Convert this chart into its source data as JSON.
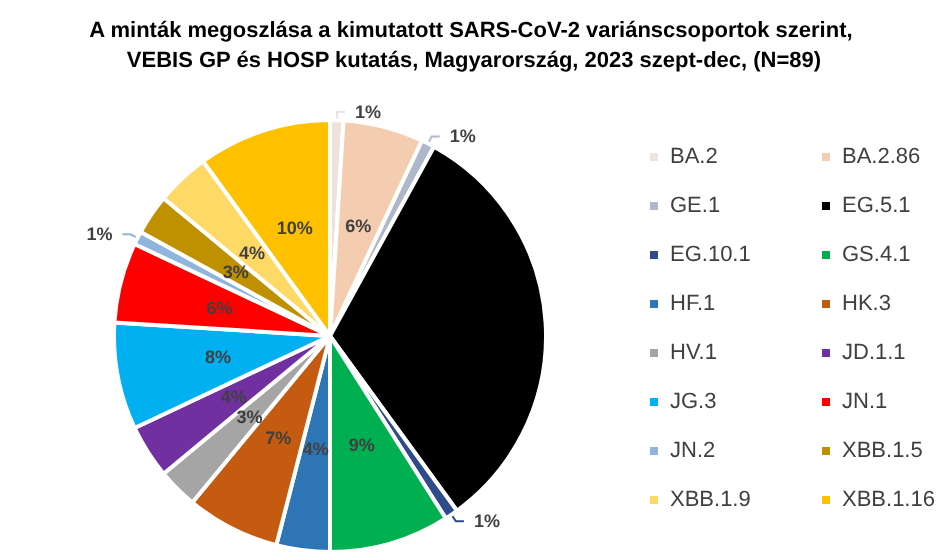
{
  "chart_data": {
    "type": "pie",
    "title": "A minták megoszlása a kimutatott SARS-CoV-2 variánscsoportok szerint, VEBIS GP és HOSP kutatás, Magyarország, 2023 szept-dec, (N=89)",
    "categories": [
      "BA.2",
      "BA.2.86",
      "GE.1",
      "EG.5.1",
      "EG.10.1",
      "GS.4.1",
      "HF.1",
      "HK.3",
      "HV.1",
      "JD.1.1",
      "JG.3",
      "JN.1",
      "JN.2",
      "XBB.1.5",
      "XBB.1.9",
      "XBB.1.16"
    ],
    "values": [
      1,
      6,
      1,
      32,
      1,
      9,
      4,
      7,
      3,
      4,
      8,
      6,
      1,
      3,
      4,
      10
    ],
    "value_labels": [
      "1%",
      "6%",
      "1%",
      null,
      "1%",
      "9%",
      "4%",
      "7%",
      "3%",
      "4%",
      "8%",
      "6%",
      "1%",
      "3%",
      "4%",
      "10%"
    ],
    "colors": [
      "#ede3dc",
      "#f4ccb0",
      "#adb9ca",
      "#000000",
      "#2f4b8a",
      "#00b050",
      "#2e75b6",
      "#c55a11",
      "#a5a5a5",
      "#7030a0",
      "#00b0f0",
      "#ff0000",
      "#8fb4de",
      "#bf9000",
      "#ffd966",
      "#ffc000"
    ],
    "legend": "right"
  }
}
